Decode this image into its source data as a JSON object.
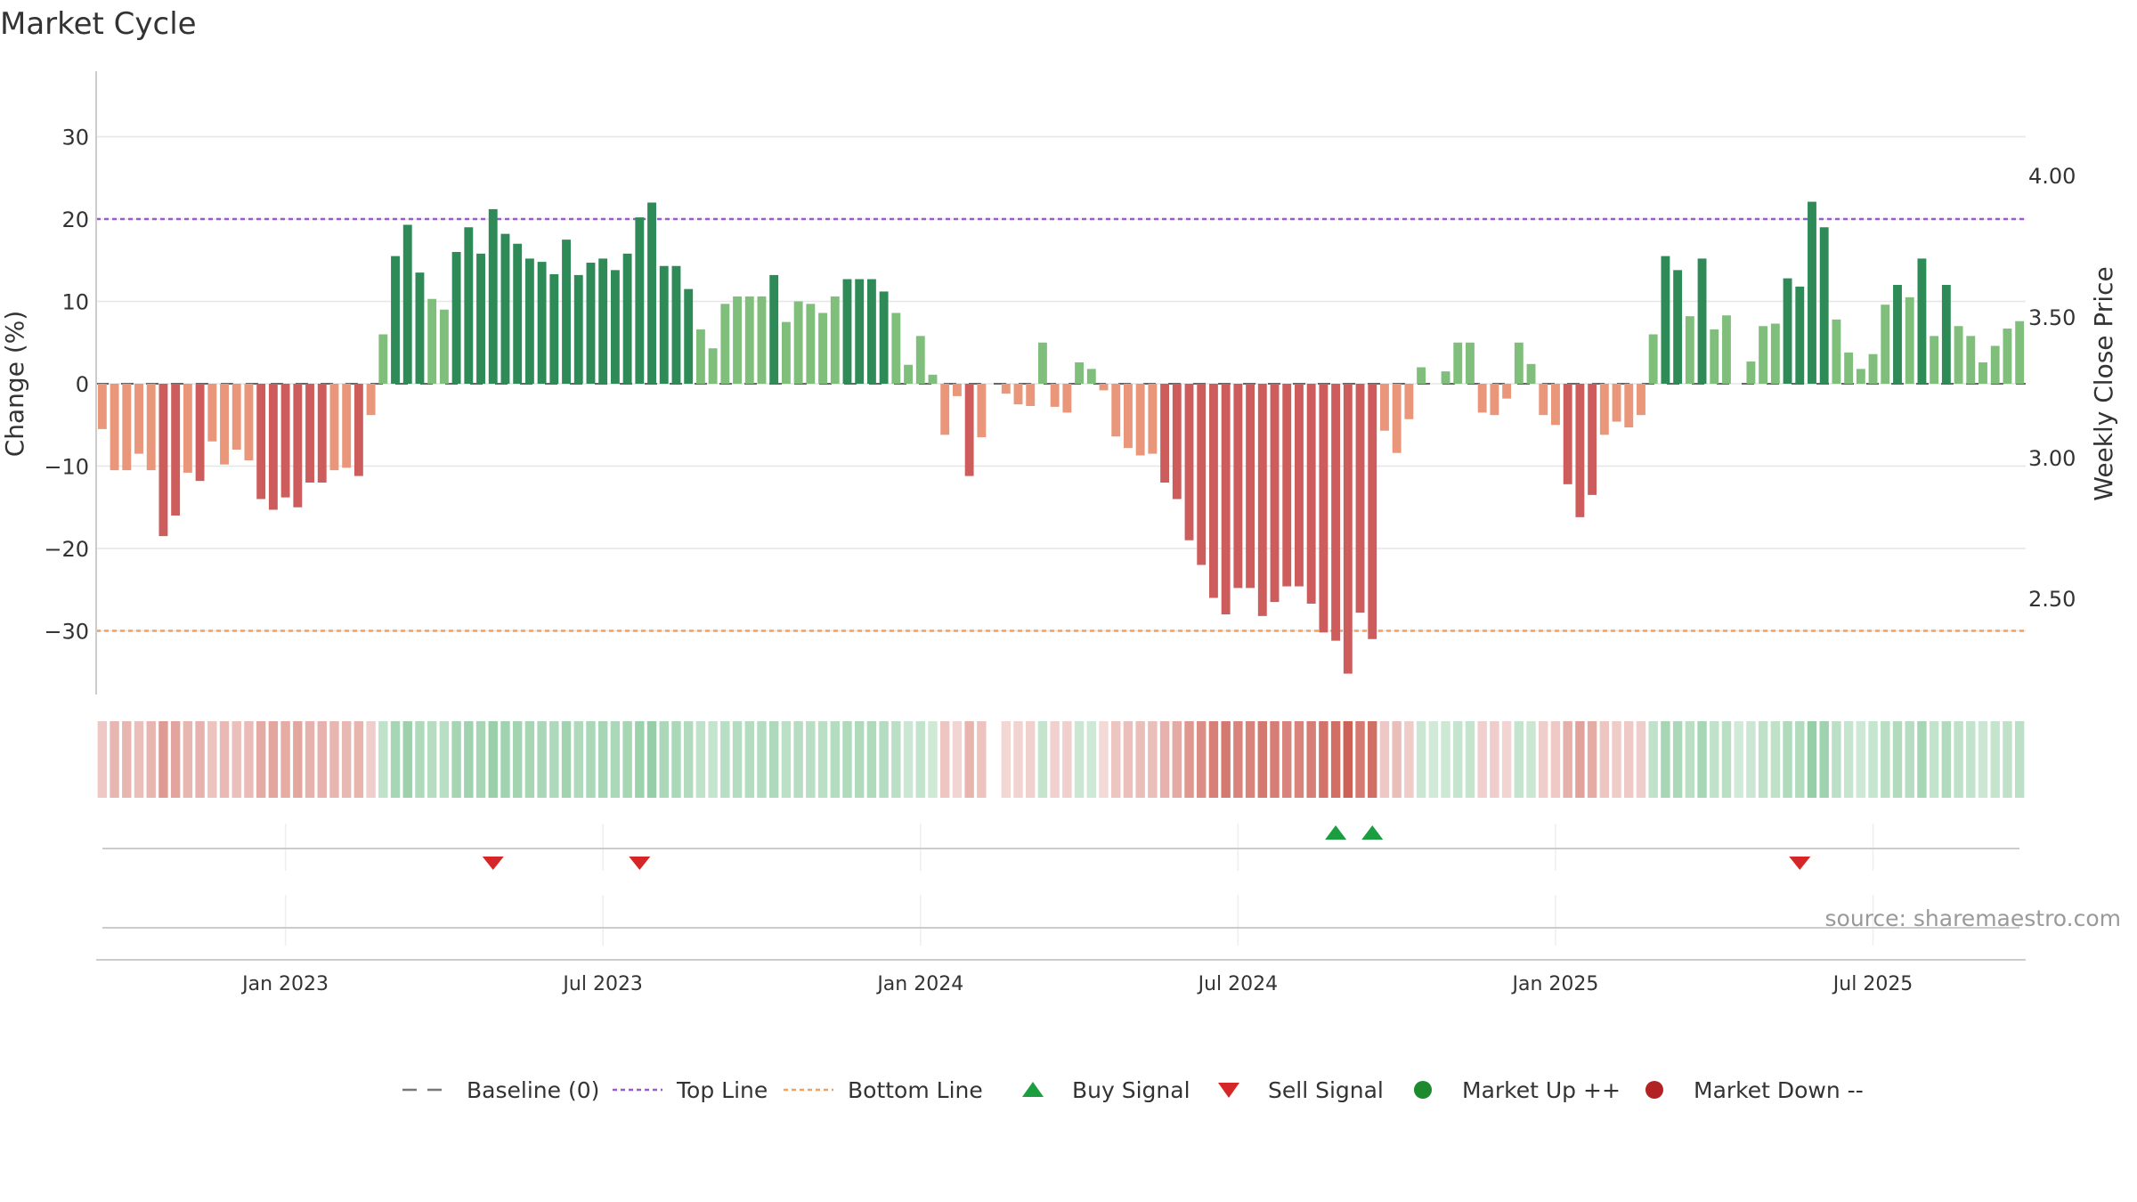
{
  "chart_data": {
    "type": "bar",
    "title": "Market Cycle",
    "ylabel": "Change (%)",
    "y2label": "Weekly Close Price",
    "source": "source: sharemaestro.com",
    "ylim": [
      -38,
      38
    ],
    "y_ticks": [
      30,
      20,
      10,
      0,
      -10,
      -20,
      -30
    ],
    "y_tick_labels": [
      "30",
      "20",
      "10",
      "0",
      "−10",
      "−20",
      "−30"
    ],
    "y2_tick_labels": [
      "4.00",
      "3.50",
      "3.00",
      "2.50"
    ],
    "x_tick_labels": [
      "Jan 2023",
      "Jul 2023",
      "Jan 2024",
      "Jul 2024",
      "Jan 2025",
      "Jul 2025"
    ],
    "top_line": 20,
    "bottom_line": -30,
    "values": [
      -5.5,
      -10.5,
      -10.5,
      -8.5,
      -10.5,
      -18.5,
      -16,
      -10.8,
      -11.8,
      -7,
      -9.8,
      -8,
      -9.3,
      -14,
      -15.3,
      -13.8,
      -15,
      -12,
      -12,
      -10.5,
      -10.2,
      -11.2,
      -3.8,
      6,
      15.5,
      19.3,
      13.5,
      10.3,
      9,
      16,
      19,
      15.8,
      21.2,
      18.2,
      17,
      15.2,
      14.8,
      13.3,
      17.5,
      13.2,
      14.7,
      15.2,
      13.8,
      15.8,
      20.2,
      22,
      14.3,
      14.3,
      11.5,
      6.6,
      4.3,
      9.7,
      10.6,
      10.6,
      10.6,
      13.2,
      7.5,
      10,
      9.7,
      8.6,
      10.6,
      12.7,
      12.7,
      12.7,
      11.2,
      8.6,
      2.3,
      5.8,
      1.1,
      -6.2,
      -1.5,
      -11.2,
      -6.5,
      0,
      -1.2,
      -2.5,
      -2.7,
      5,
      -2.8,
      -3.5,
      2.6,
      1.8,
      -0.8,
      -6.4,
      -7.8,
      -8.7,
      -8.5,
      -12,
      -14,
      -19,
      -22,
      -26,
      -28,
      -24.8,
      -24.8,
      -28.2,
      -26.5,
      -24.6,
      -24.6,
      -26.7,
      -30.2,
      -31.2,
      -35.2,
      -27.8,
      -31,
      -5.7,
      -8.4,
      -4.3,
      2,
      0,
      1.5,
      5,
      5,
      -3.5,
      -3.8,
      -1.8,
      5,
      2.4,
      -3.8,
      -5,
      -12.2,
      -16.2,
      -13.5,
      -6.2,
      -4.6,
      -5.3,
      -3.8,
      6,
      15.5,
      13.8,
      8.2,
      15.2,
      6.6,
      8.3,
      0,
      2.7,
      7,
      7.3,
      12.8,
      11.8,
      22.1,
      19,
      7.8,
      3.8,
      1.8,
      3.6,
      9.6,
      12,
      10.5,
      15.2,
      5.8,
      12,
      7,
      5.8,
      2.6,
      4.6,
      6.7,
      7.6
    ],
    "signals": {
      "buy_indices": [
        101,
        104
      ],
      "sell_indices": [
        32,
        44,
        139
      ]
    },
    "legend": [
      {
        "label": "Baseline (0)",
        "symbol": "dash",
        "color": "#777777"
      },
      {
        "label": "Top Line",
        "symbol": "dotted",
        "color": "#9b59d0"
      },
      {
        "label": "Bottom Line",
        "symbol": "dotted",
        "color": "#f0a060"
      },
      {
        "label": "Buy Signal",
        "symbol": "triangle-up",
        "color": "#1a9e3f"
      },
      {
        "label": "Sell Signal",
        "symbol": "triangle-down",
        "color": "#d62728"
      },
      {
        "label": "Market Up ++",
        "symbol": "circle",
        "color": "#1e8a2e"
      },
      {
        "label": "Market Down --",
        "symbol": "circle",
        "color": "#b22222"
      }
    ],
    "colors": {
      "strong_up": "#2e8b57",
      "up": "#7fbf7b",
      "strong_down": "#cd5c5c",
      "down": "#e9967a",
      "grid": "#e6e6e6",
      "top_line": "#9b59d0",
      "bottom_line": "#f0a060"
    }
  }
}
